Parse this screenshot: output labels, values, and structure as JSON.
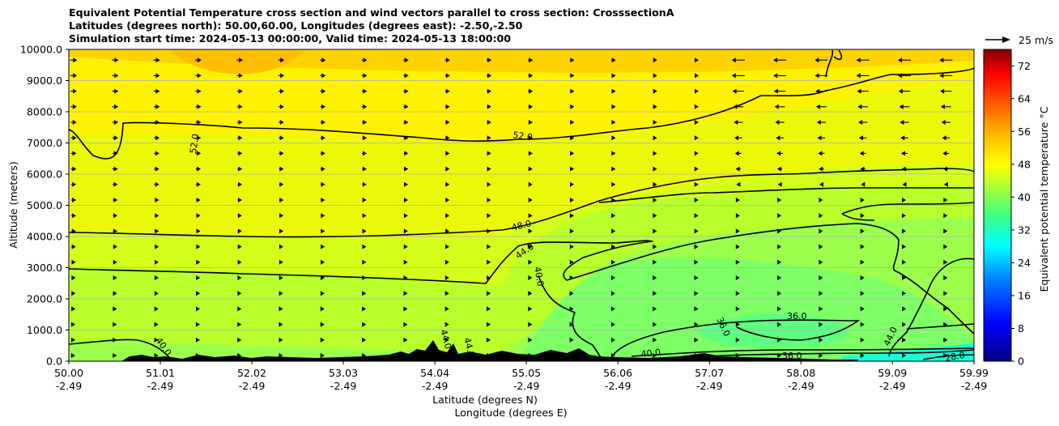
{
  "chart_data": {
    "type": "heatmap",
    "title_lines": [
      "Equivalent Potential Temperature cross section and wind vectors parallel to cross section: CrosssectionA",
      "Latitudes (degrees north): 50.00,60.00, Longitudes (degrees east): -2.50,-2.50",
      "Simulation start time: 2024-05-13 00:00:00, Valid time: 2024-05-13 18:00:00"
    ],
    "xlabel_lines": [
      "Latitude (degrees N)",
      "Longitude (degrees E)"
    ],
    "ylabel": "Altitude (meters)",
    "ylim": [
      0,
      10000
    ],
    "yticks": [
      "0.0",
      "1000.0",
      "2000.0",
      "3000.0",
      "4000.0",
      "5000.0",
      "6000.0",
      "7000.0",
      "8000.0",
      "9000.0",
      "10000.0"
    ],
    "xlim": [
      50.0,
      59.99
    ],
    "xticks": [
      {
        "lat": "50.00",
        "lon": "-2.49"
      },
      {
        "lat": "51.01",
        "lon": "-2.49"
      },
      {
        "lat": "52.02",
        "lon": "-2.49"
      },
      {
        "lat": "53.03",
        "lon": "-2.49"
      },
      {
        "lat": "54.04",
        "lon": "-2.49"
      },
      {
        "lat": "55.05",
        "lon": "-2.49"
      },
      {
        "lat": "56.06",
        "lon": "-2.49"
      },
      {
        "lat": "57.07",
        "lon": "-2.49"
      },
      {
        "lat": "58.08",
        "lon": "-2.49"
      },
      {
        "lat": "59.09",
        "lon": "-2.49"
      },
      {
        "lat": "59.99",
        "lon": "-2.49"
      }
    ],
    "grid": "horizontal",
    "colorbar": {
      "label": "Equivalent potential temperature °C",
      "range": [
        0,
        76
      ],
      "ticks": [
        "0",
        "8",
        "16",
        "24",
        "32",
        "40",
        "48",
        "56",
        "64",
        "72"
      ]
    },
    "quiver_key": "25 m/s",
    "contours": [
      {
        "level": 52.0,
        "label": "52.0",
        "altitude_m": [
          7400,
          7620,
          7580,
          7500,
          7320,
          7100,
          7200,
          7350,
          7500,
          7800,
          8000,
          8200,
          8400,
          8900
        ]
      },
      {
        "level": 48.0,
        "label": "48.0",
        "altitude_m": [
          4150,
          4120,
          4050,
          4000,
          3850,
          3700,
          4250,
          4800,
          5400,
          5700,
          6050,
          6100,
          6150,
          6400
        ]
      },
      {
        "level": 44.0,
        "label": "44.0",
        "altitude_m": [
          2950,
          2900,
          2850,
          2750,
          2600,
          2500,
          3400,
          4300,
          4700,
          5000,
          5200,
          5350,
          5500,
          5600
        ]
      },
      {
        "level": 40.0,
        "label": "40.0",
        "altitude_m": [
          400,
          300,
          250,
          250,
          300,
          400,
          900,
          1300,
          1400,
          1350,
          1300,
          1300,
          1200,
          1300
        ]
      },
      {
        "level": 36.0,
        "label": "36.0",
        "altitude_m": [
          0,
          0,
          0,
          0,
          0,
          0,
          200,
          600,
          900,
          1200,
          1000,
          500,
          300,
          250
        ]
      },
      {
        "level": 28.0,
        "label": "28.0",
        "altitude_m": [
          0,
          0,
          0,
          0,
          0,
          0,
          0,
          0,
          0,
          0,
          0,
          0,
          30,
          30
        ]
      }
    ],
    "contour_labels": [
      "52.0",
      "52.0",
      "48.0",
      "44.0",
      "40.0",
      "40.0",
      "36.0",
      "36.0",
      "36.0",
      "40.0",
      "44.0",
      "44.0",
      "44.0",
      "28.0"
    ]
  }
}
